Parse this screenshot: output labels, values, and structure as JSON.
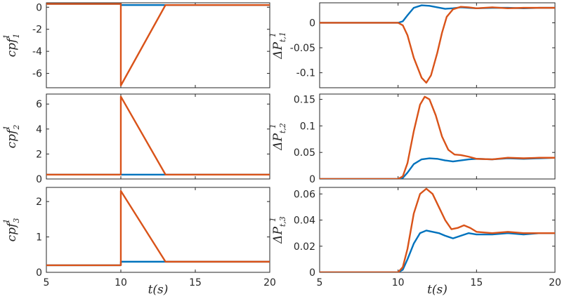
{
  "colors": {
    "series_blue": "#0072BD",
    "series_orange": "#D95319",
    "axis": "#262626"
  },
  "chart_data": [
    {
      "id": "cpf1",
      "type": "line",
      "ylabel": "cpf",
      "ylabel_sub": "1",
      "ylabel_sup": "1",
      "xlabel": "",
      "xlim": [
        5,
        20
      ],
      "ylim": [
        -7.3,
        0.4
      ],
      "xticks": [
        5,
        10,
        15,
        20
      ],
      "yticks": [
        0,
        -2,
        -4,
        -6
      ],
      "yticklabels": [
        "0",
        "-2",
        "-4",
        "-6"
      ],
      "show_xticklabels": false,
      "series": [
        {
          "color": "#0072BD",
          "x": [
            5,
            10,
            10,
            20
          ],
          "y": [
            0.3,
            0.3,
            0.2,
            0.2
          ]
        },
        {
          "color": "#D95319",
          "x": [
            5,
            10,
            10,
            13,
            20
          ],
          "y": [
            0.3,
            0.3,
            -7.1,
            0.2,
            0.2
          ]
        }
      ]
    },
    {
      "id": "cpf2",
      "type": "line",
      "ylabel": "cpf",
      "ylabel_sub": "2",
      "ylabel_sup": "1",
      "xlabel": "",
      "xlim": [
        5,
        20
      ],
      "ylim": [
        0,
        6.8
      ],
      "xticks": [
        5,
        10,
        15,
        20
      ],
      "yticks": [
        0,
        2,
        4,
        6
      ],
      "yticklabels": [
        "0",
        "2",
        "4",
        "6"
      ],
      "show_xticklabels": false,
      "series": [
        {
          "color": "#0072BD",
          "x": [
            5,
            20
          ],
          "y": [
            0.35,
            0.35
          ]
        },
        {
          "color": "#D95319",
          "x": [
            5,
            10,
            10,
            13,
            20
          ],
          "y": [
            0.35,
            0.35,
            6.6,
            0.35,
            0.35
          ]
        }
      ]
    },
    {
      "id": "cpf3",
      "type": "line",
      "ylabel": "cpf",
      "ylabel_sub": "3",
      "ylabel_sup": "1",
      "xlabel": "t(s)",
      "xlim": [
        5,
        20
      ],
      "ylim": [
        0,
        2.4
      ],
      "xticks": [
        5,
        10,
        15,
        20
      ],
      "yticks": [
        0,
        1,
        2
      ],
      "yticklabels": [
        "0",
        "1",
        "2"
      ],
      "show_xticklabels": true,
      "series": [
        {
          "color": "#0072BD",
          "x": [
            5,
            10,
            10,
            20
          ],
          "y": [
            0.2,
            0.2,
            0.3,
            0.3
          ]
        },
        {
          "color": "#D95319",
          "x": [
            5,
            10,
            10,
            13,
            20
          ],
          "y": [
            0.2,
            0.2,
            2.3,
            0.3,
            0.3
          ]
        }
      ]
    },
    {
      "id": "dPt1",
      "type": "line",
      "ylabel": "ΔP",
      "ylabel_sub": "t,1",
      "ylabel_sup": "1",
      "xlabel": "",
      "xlim": [
        5,
        20
      ],
      "ylim": [
        -0.13,
        0.04
      ],
      "xticks": [
        5,
        10,
        15,
        20
      ],
      "yticks": [
        0,
        -0.05,
        -0.1
      ],
      "yticklabels": [
        "0",
        "-0.05",
        "-0.1"
      ],
      "show_xticklabels": false,
      "series": [
        {
          "color": "#0072BD",
          "x": [
            5,
            10,
            10.3,
            10.6,
            11,
            11.5,
            12,
            12.5,
            13,
            13.5,
            14,
            14.5,
            15,
            16,
            17,
            18,
            19,
            20
          ],
          "y": [
            0,
            0,
            0.003,
            0.015,
            0.03,
            0.035,
            0.034,
            0.031,
            0.028,
            0.029,
            0.031,
            0.03,
            0.029,
            0.03,
            0.03,
            0.029,
            0.03,
            0.03
          ]
        },
        {
          "color": "#D95319",
          "x": [
            5,
            10,
            10.3,
            10.6,
            11,
            11.5,
            11.8,
            12.1,
            12.5,
            12.8,
            13.1,
            13.5,
            14,
            14.5,
            15,
            16,
            17,
            18,
            19,
            20
          ],
          "y": [
            0,
            0,
            -0.005,
            -0.025,
            -0.07,
            -0.11,
            -0.12,
            -0.105,
            -0.06,
            -0.02,
            0.012,
            0.027,
            0.032,
            0.031,
            0.029,
            0.031,
            0.029,
            0.03,
            0.03,
            0.03
          ]
        }
      ]
    },
    {
      "id": "dPt2",
      "type": "line",
      "ylabel": "ΔP",
      "ylabel_sub": "t,2",
      "ylabel_sup": "1",
      "xlabel": "",
      "xlim": [
        5,
        20
      ],
      "ylim": [
        0,
        0.16
      ],
      "xticks": [
        5,
        10,
        15,
        20
      ],
      "yticks": [
        0,
        0.05,
        0.1,
        0.15
      ],
      "yticklabels": [
        "0",
        "0.05",
        "0.1",
        "0.15"
      ],
      "show_xticklabels": false,
      "series": [
        {
          "color": "#0072BD",
          "x": [
            5,
            10,
            10.3,
            10.6,
            11,
            11.5,
            12,
            12.5,
            13,
            13.5,
            14,
            14.5,
            15,
            16,
            17,
            18,
            19,
            20
          ],
          "y": [
            0,
            0,
            0.002,
            0.012,
            0.028,
            0.037,
            0.039,
            0.038,
            0.035,
            0.033,
            0.035,
            0.037,
            0.038,
            0.037,
            0.039,
            0.038,
            0.039,
            0.04
          ]
        },
        {
          "color": "#D95319",
          "x": [
            5,
            10,
            10.3,
            10.6,
            11,
            11.4,
            11.7,
            12,
            12.4,
            12.8,
            13.2,
            13.6,
            14,
            14.5,
            15,
            16,
            17,
            18,
            19,
            20
          ],
          "y": [
            0,
            0,
            0.005,
            0.03,
            0.09,
            0.14,
            0.155,
            0.15,
            0.12,
            0.08,
            0.055,
            0.046,
            0.045,
            0.042,
            0.038,
            0.037,
            0.04,
            0.039,
            0.04,
            0.04
          ]
        }
      ]
    },
    {
      "id": "dPt3",
      "type": "line",
      "ylabel": "ΔP",
      "ylabel_sub": "t,3",
      "ylabel_sup": "1",
      "xlabel": "t(s)",
      "xlim": [
        5,
        20
      ],
      "ylim": [
        0,
        0.065
      ],
      "xticks": [
        5,
        10,
        15,
        20
      ],
      "yticks": [
        0,
        0.02,
        0.04,
        0.06
      ],
      "yticklabels": [
        "0",
        "0.02",
        "0.04",
        "0.06"
      ],
      "show_xticklabels": true,
      "series": [
        {
          "color": "#0072BD",
          "x": [
            5,
            10,
            10.3,
            10.6,
            11,
            11.4,
            11.8,
            12.2,
            12.6,
            13,
            13.5,
            14,
            14.5,
            15,
            16,
            17,
            18,
            19,
            20
          ],
          "y": [
            0,
            0,
            0.002,
            0.01,
            0.022,
            0.03,
            0.032,
            0.031,
            0.03,
            0.028,
            0.026,
            0.028,
            0.03,
            0.029,
            0.029,
            0.03,
            0.029,
            0.03,
            0.03
          ]
        },
        {
          "color": "#D95319",
          "x": [
            5,
            10,
            10.3,
            10.6,
            11,
            11.4,
            11.8,
            12.2,
            12.6,
            13,
            13.4,
            13.8,
            14.2,
            14.6,
            15,
            16,
            17,
            18,
            19,
            20
          ],
          "y": [
            0,
            0,
            0.004,
            0.018,
            0.045,
            0.06,
            0.064,
            0.06,
            0.05,
            0.04,
            0.033,
            0.034,
            0.036,
            0.034,
            0.031,
            0.03,
            0.031,
            0.03,
            0.03,
            0.03
          ]
        }
      ]
    }
  ]
}
